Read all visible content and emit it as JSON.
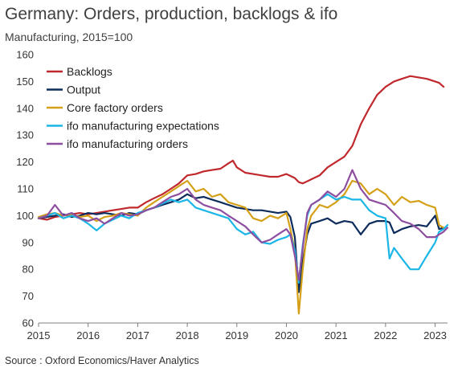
{
  "title": "Germany: Orders, production, backlogs & ifo",
  "subtitle": "Manufacturing, 2015=100",
  "source": "Source : Oxford Economics/Haver Analytics",
  "chart_data": {
    "type": "line",
    "ylim": [
      60,
      160
    ],
    "yticks": [
      60,
      70,
      80,
      90,
      100,
      110,
      120,
      130,
      140,
      150,
      160
    ],
    "xlim": [
      2015.0,
      2023.25
    ],
    "xticks": [
      2015,
      2016,
      2017,
      2018,
      2019,
      2020,
      2021,
      2022,
      2023
    ],
    "grid": false,
    "legend_position": "top-left",
    "series": [
      {
        "name": "Backlogs",
        "color": "#c0282d",
        "x": [
          2015.0,
          2015.17,
          2015.33,
          2015.5,
          2015.67,
          2015.83,
          2016.0,
          2016.17,
          2016.33,
          2016.5,
          2016.67,
          2016.83,
          2017.0,
          2017.17,
          2017.33,
          2017.5,
          2017.67,
          2017.83,
          2018.0,
          2018.17,
          2018.33,
          2018.5,
          2018.67,
          2018.83,
          2018.92,
          2019.0,
          2019.17,
          2019.33,
          2019.5,
          2019.67,
          2019.83,
          2020.0,
          2020.17,
          2020.25,
          2020.33,
          2020.5,
          2020.67,
          2020.83,
          2021.0,
          2021.17,
          2021.33,
          2021.5,
          2021.67,
          2021.83,
          2022.0,
          2022.17,
          2022.33,
          2022.5,
          2022.67,
          2022.83,
          2023.0,
          2023.08,
          2023.17
        ],
        "values": [
          99,
          98.5,
          99.5,
          100,
          100.5,
          101,
          100.5,
          101,
          101.5,
          102,
          102.5,
          103,
          103,
          105,
          106.5,
          108,
          110,
          112,
          115,
          115.5,
          116.5,
          117,
          117.5,
          119.5,
          120.5,
          118,
          116,
          115.5,
          115,
          114.5,
          114.5,
          115.5,
          114,
          112.5,
          112,
          113.5,
          115,
          118,
          120,
          122,
          126,
          134,
          140,
          145,
          148,
          150,
          151,
          152,
          151.5,
          151,
          150,
          149.5,
          148
        ]
      },
      {
        "name": "Output",
        "color": "#0d2b5b",
        "x": [
          2015.0,
          2015.17,
          2015.33,
          2015.5,
          2015.67,
          2015.83,
          2016.0,
          2016.17,
          2016.33,
          2016.5,
          2016.67,
          2016.83,
          2017.0,
          2017.17,
          2017.33,
          2017.5,
          2017.67,
          2017.83,
          2018.0,
          2018.17,
          2018.33,
          2018.5,
          2018.67,
          2018.83,
          2019.0,
          2019.17,
          2019.33,
          2019.5,
          2019.67,
          2019.83,
          2020.0,
          2020.08,
          2020.17,
          2020.25,
          2020.33,
          2020.42,
          2020.5,
          2020.67,
          2020.83,
          2021.0,
          2021.17,
          2021.33,
          2021.5,
          2021.67,
          2021.83,
          2022.0,
          2022.08,
          2022.17,
          2022.33,
          2022.5,
          2022.67,
          2022.83,
          2023.0,
          2023.08,
          2023.17
        ],
        "values": [
          99,
          99.5,
          100,
          100.5,
          99.5,
          100,
          101,
          100.5,
          101,
          100.5,
          100,
          101,
          100.5,
          102,
          103,
          104,
          105,
          106,
          108,
          106.5,
          107,
          106,
          105,
          104,
          103,
          102.5,
          102,
          102,
          101.5,
          101,
          101.5,
          99.5,
          92,
          71.5,
          83,
          93,
          97,
          98,
          99,
          97,
          98,
          97.5,
          93,
          97,
          98,
          98,
          97.5,
          93.5,
          95,
          96,
          96.5,
          96,
          100,
          95,
          95.5
        ]
      },
      {
        "name": "Core factory orders",
        "color": "#d4a017",
        "x": [
          2015.0,
          2015.17,
          2015.33,
          2015.5,
          2015.67,
          2015.83,
          2016.0,
          2016.17,
          2016.33,
          2016.5,
          2016.67,
          2016.83,
          2017.0,
          2017.17,
          2017.33,
          2017.5,
          2017.67,
          2017.83,
          2018.0,
          2018.17,
          2018.33,
          2018.5,
          2018.67,
          2018.83,
          2019.0,
          2019.17,
          2019.33,
          2019.5,
          2019.67,
          2019.83,
          2020.0,
          2020.08,
          2020.17,
          2020.25,
          2020.33,
          2020.42,
          2020.5,
          2020.67,
          2020.83,
          2021.0,
          2021.17,
          2021.33,
          2021.5,
          2021.67,
          2021.83,
          2022.0,
          2022.17,
          2022.33,
          2022.5,
          2022.67,
          2022.83,
          2023.0,
          2023.08,
          2023.17
        ],
        "values": [
          99.5,
          100.5,
          101,
          100,
          100.5,
          99.5,
          100,
          98,
          99.5,
          100,
          101,
          100.5,
          100,
          103,
          105,
          107,
          109,
          111,
          113,
          109,
          110,
          107,
          108,
          105,
          104,
          103,
          99,
          98,
          100,
          99,
          101,
          95,
          87,
          63.5,
          80,
          95,
          100,
          104,
          103,
          105,
          108,
          113,
          112,
          108,
          110,
          108,
          104,
          107,
          105,
          105.5,
          104,
          103,
          96.5,
          95.5
        ]
      },
      {
        "name": "ifo manufacturing expectations",
        "color": "#1ab6e6",
        "x": [
          2015.0,
          2015.17,
          2015.33,
          2015.5,
          2015.67,
          2015.83,
          2016.0,
          2016.17,
          2016.33,
          2016.5,
          2016.67,
          2016.83,
          2017.0,
          2017.17,
          2017.33,
          2017.5,
          2017.67,
          2017.83,
          2018.0,
          2018.17,
          2018.33,
          2018.5,
          2018.67,
          2018.83,
          2019.0,
          2019.17,
          2019.33,
          2019.5,
          2019.67,
          2019.83,
          2020.0,
          2020.08,
          2020.17,
          2020.25,
          2020.33,
          2020.42,
          2020.5,
          2020.67,
          2020.83,
          2021.0,
          2021.17,
          2021.33,
          2021.5,
          2021.67,
          2021.83,
          2022.0,
          2022.08,
          2022.17,
          2022.33,
          2022.5,
          2022.67,
          2022.83,
          2023.0,
          2023.08,
          2023.17,
          2023.25
        ],
        "values": [
          99,
          100,
          101,
          99,
          100,
          99,
          97,
          94.5,
          97,
          98.5,
          100,
          99,
          101,
          102,
          103,
          104.5,
          106,
          105,
          106,
          103,
          102,
          101,
          100,
          99,
          95,
          93,
          94,
          90,
          89.5,
          91,
          92,
          93,
          87,
          75,
          89,
          100,
          104,
          106,
          108,
          106,
          107,
          106,
          106,
          102,
          100,
          99,
          84,
          88,
          84,
          80,
          80,
          85,
          90,
          94,
          95,
          96.5
        ]
      },
      {
        "name": "ifo manufacturing orders",
        "color": "#8e4ea0",
        "x": [
          2015.0,
          2015.17,
          2015.33,
          2015.5,
          2015.67,
          2015.83,
          2016.0,
          2016.17,
          2016.33,
          2016.5,
          2016.67,
          2016.83,
          2017.0,
          2017.17,
          2017.33,
          2017.5,
          2017.67,
          2017.83,
          2018.0,
          2018.17,
          2018.33,
          2018.5,
          2018.67,
          2018.83,
          2019.0,
          2019.17,
          2019.33,
          2019.5,
          2019.67,
          2019.83,
          2020.0,
          2020.08,
          2020.17,
          2020.25,
          2020.33,
          2020.42,
          2020.5,
          2020.67,
          2020.83,
          2021.0,
          2021.17,
          2021.33,
          2021.5,
          2021.67,
          2021.83,
          2022.0,
          2022.17,
          2022.33,
          2022.5,
          2022.67,
          2022.83,
          2023.0,
          2023.08,
          2023.17,
          2023.25
        ],
        "values": [
          99,
          100,
          104,
          100,
          101,
          99,
          98,
          99,
          97,
          99,
          101,
          100,
          100.5,
          102,
          103,
          105,
          107,
          108,
          110,
          106,
          104,
          103,
          102,
          100,
          98,
          96,
          93,
          90,
          91,
          93,
          95,
          93,
          85,
          76,
          88,
          101,
          104,
          106,
          109,
          107,
          110,
          117,
          110,
          106,
          105,
          104,
          101,
          98,
          97,
          95,
          92,
          92,
          93,
          94,
          95.5
        ]
      }
    ]
  }
}
